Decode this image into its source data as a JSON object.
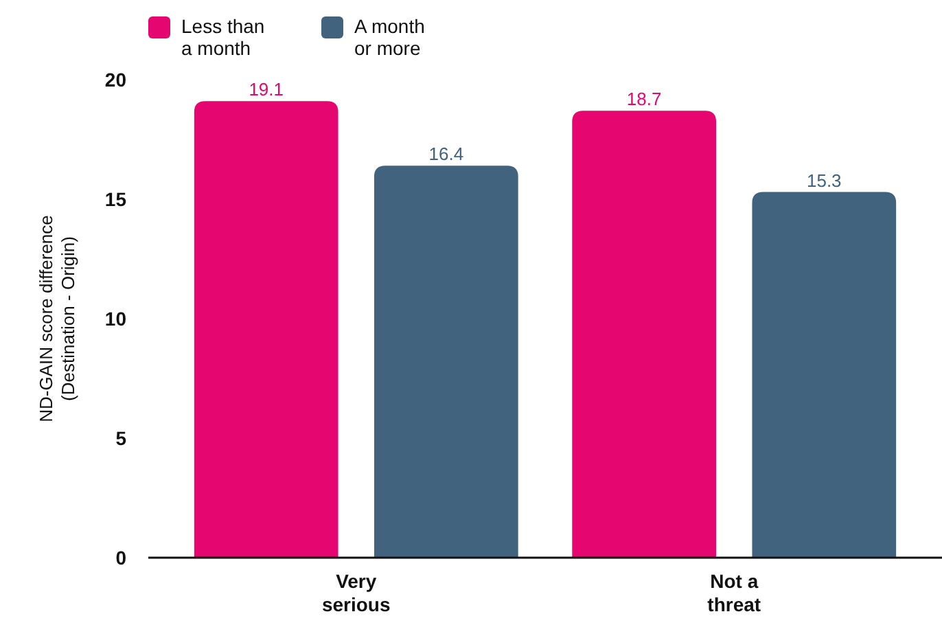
{
  "chart_data": {
    "type": "bar",
    "categories": [
      "Very serious",
      "Not a threat"
    ],
    "series": [
      {
        "name": "Less than a month",
        "color": "#e5076f",
        "values": [
          19.1,
          18.7
        ]
      },
      {
        "name": "A month or more",
        "color": "#41637e",
        "values": [
          16.4,
          15.3
        ]
      }
    ],
    "ylabel": "ND-GAIN score difference (Destination - Origin)",
    "ylim": [
      0,
      20
    ],
    "yticks": [
      0,
      5,
      10,
      15,
      20
    ],
    "data_labels": true,
    "legend": "top left",
    "grid": false
  }
}
